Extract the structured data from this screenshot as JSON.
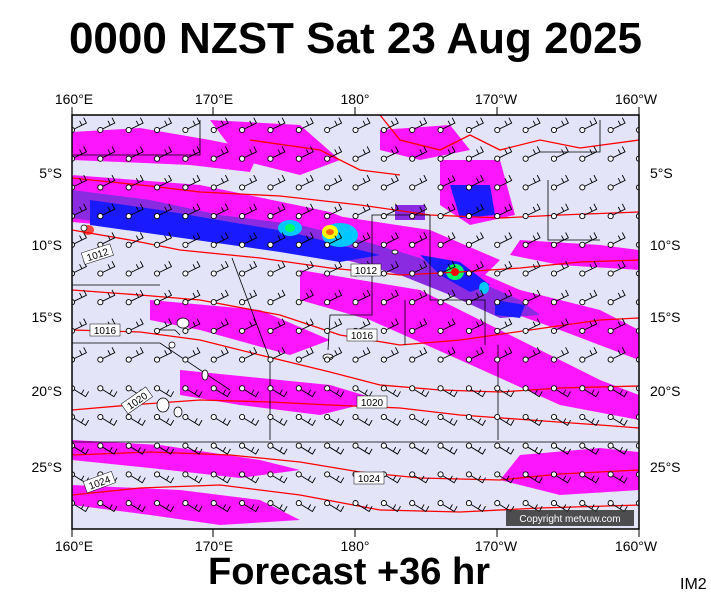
{
  "title": "0000 NZST Sat 23 Aug 2025",
  "subtitle": "Forecast +36 hr",
  "image_tag": "IM2",
  "copyright": "Copyright metvuw.com",
  "axes": {
    "top_lon_labels": [
      "160°E",
      "170°E",
      "180°",
      "170°W",
      "160°W"
    ],
    "bottom_lon_labels": [
      "160°E",
      "170°E",
      "180°",
      "170°W",
      "160°W"
    ],
    "lat_labels": [
      "5°S",
      "10°S",
      "15°S",
      "20°S",
      "25°S"
    ]
  },
  "isobar_labels": [
    "1012",
    "1012",
    "1016",
    "1016",
    "1020",
    "1020",
    "1024",
    "1024"
  ],
  "colors": {
    "ocean": "#e4e4f8",
    "rain_light": "#ff00ff",
    "rain_mid": "#8a2be2",
    "rain_heavy": "#1a1aff",
    "rain_intense": "#00c8ff",
    "rain_extreme": "#ffff00",
    "isobar": "#ff0000",
    "coast": "#000000"
  }
}
